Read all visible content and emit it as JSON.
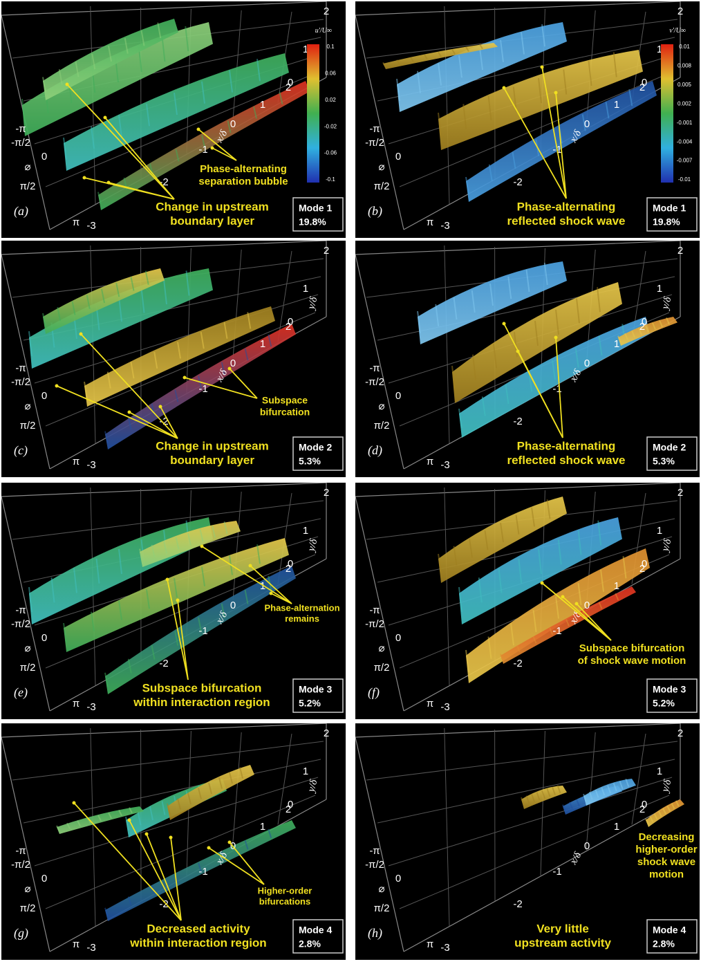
{
  "axes": {
    "y_ticks": [
      "2",
      "1",
      "0"
    ],
    "y_label": "y/δ",
    "x_ticks": [
      "-3",
      "-2",
      "-1",
      "0",
      "1",
      "2"
    ],
    "x_label": "x/δ",
    "phi_ticks": [
      "-π",
      "-π/2",
      "0",
      "π/2",
      "π"
    ],
    "phi_label": "⌀"
  },
  "panels": [
    {
      "label": "(a)",
      "annotations": [
        [
          "Phase-alternating",
          "separation bubble"
        ],
        [
          "Change in upstream",
          "boundary layer"
        ]
      ],
      "mode": "Mode 1",
      "percent": "19.8%",
      "colorbar": {
        "title": "u'/U∞",
        "ticks": [
          "0.1",
          "0.06",
          "0.02",
          "-0.02",
          "-0.06",
          "-0.1"
        ]
      }
    },
    {
      "label": "(b)",
      "annotations": [
        [
          "Phase-alternating",
          "reflected shock wave"
        ]
      ],
      "mode": "Mode 1",
      "percent": "19.8%",
      "colorbar": {
        "title": "v'/U∞",
        "ticks": [
          "0.01",
          "0.008",
          "0.005",
          "0.002",
          "-0.001",
          "-0.004",
          "-0.007",
          "-0.01"
        ]
      }
    },
    {
      "label": "(c)",
      "annotations": [
        [
          "Subspace",
          "bifurcation"
        ],
        [
          "Change in upstream",
          "boundary layer"
        ]
      ],
      "mode": "Mode 2",
      "percent": "5.3%"
    },
    {
      "label": "(d)",
      "annotations": [
        [
          "Phase-alternating",
          "reflected shock wave"
        ]
      ],
      "mode": "Mode 2",
      "percent": "5.3%"
    },
    {
      "label": "(e)",
      "annotations": [
        [
          "Phase-alternation",
          "remains"
        ],
        [
          "Subspace bifurcation",
          "within interaction region"
        ]
      ],
      "mode": "Mode 3",
      "percent": "5.2%"
    },
    {
      "label": "(f)",
      "annotations": [
        [
          "Subspace bifurcation",
          "of shock wave motion"
        ]
      ],
      "mode": "Mode 3",
      "percent": "5.2%"
    },
    {
      "label": "(g)",
      "annotations": [
        [
          "Higher-order",
          "bifurcations"
        ],
        [
          "Decreased activity",
          "within interaction region"
        ]
      ],
      "mode": "Mode 4",
      "percent": "2.8%"
    },
    {
      "label": "(h)",
      "annotations": [
        [
          "Decreasing",
          "higher-order",
          "shock wave",
          "motion"
        ],
        [
          "Very little",
          "upstream activity"
        ]
      ],
      "mode": "Mode 4",
      "percent": "2.8%"
    }
  ]
}
